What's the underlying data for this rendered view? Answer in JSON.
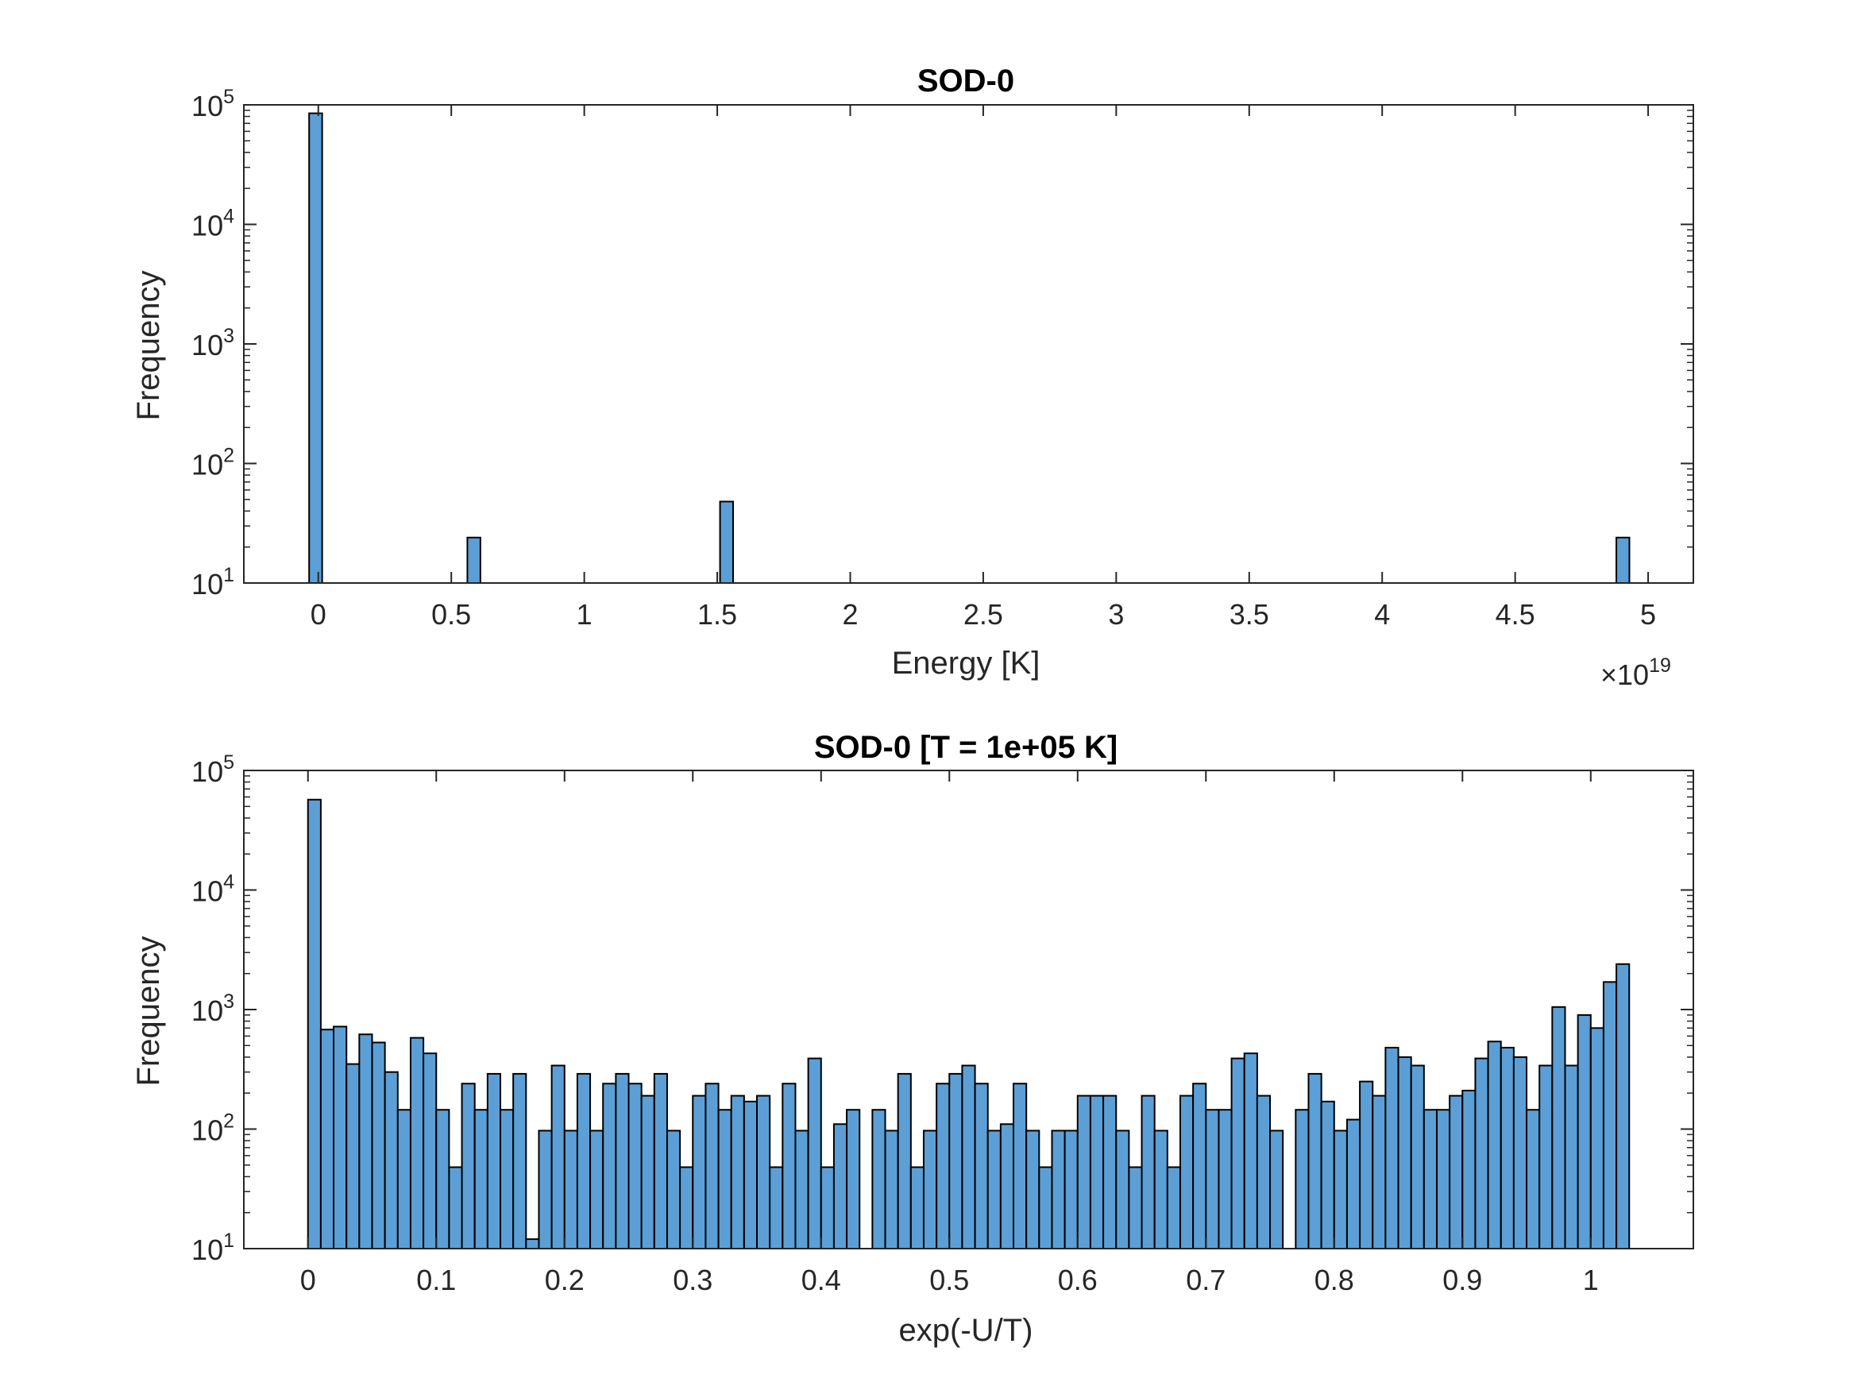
{
  "chart_data": [
    {
      "type": "bar",
      "title": "SOD-0",
      "xlabel": "Energy [K]",
      "ylabel": "Frequency",
      "x_multiplier_label": "×10",
      "x_multiplier_exponent": "19",
      "xlim": [
        -0.28,
        5.17
      ],
      "ylim": [
        10,
        100000
      ],
      "yscale": "log",
      "xticks": [
        0,
        0.5,
        1,
        1.5,
        2,
        2.5,
        3,
        3.5,
        4,
        4.5,
        5
      ],
      "xtick_labels": [
        "0",
        "0.5",
        "1",
        "1.5",
        "2",
        "2.5",
        "3",
        "3.5",
        "4",
        "4.5",
        "5"
      ],
      "yticks": [
        10,
        100,
        1000,
        10000,
        100000
      ],
      "ytick_base": "10",
      "ytick_exponents": [
        "1",
        "2",
        "3",
        "4",
        "5"
      ],
      "bar_width": 0.049,
      "bars": [
        {
          "x": -0.01,
          "value": 85000
        },
        {
          "x": 0.585,
          "value": 24
        },
        {
          "x": 1.535,
          "value": 48
        },
        {
          "x": 4.905,
          "value": 24
        }
      ],
      "bar_color": "#5c9fd6",
      "edge_color": "#000000",
      "grid": false
    },
    {
      "type": "bar",
      "title": "SOD-0 [T = 1e+05 K]",
      "xlabel": "exp(-U/T)",
      "ylabel": "Frequency",
      "xlim": [
        -0.05,
        1.08
      ],
      "ylim": [
        10,
        100000
      ],
      "yscale": "log",
      "xticks": [
        0,
        0.1,
        0.2,
        0.3,
        0.4,
        0.5,
        0.6,
        0.7,
        0.8,
        0.9,
        1
      ],
      "xtick_labels": [
        "0",
        "0.1",
        "0.2",
        "0.3",
        "0.4",
        "0.5",
        "0.6",
        "0.7",
        "0.8",
        "0.9",
        "1"
      ],
      "yticks": [
        10,
        100,
        1000,
        10000,
        100000
      ],
      "ytick_base": "10",
      "ytick_exponents": [
        "1",
        "2",
        "3",
        "4",
        "5"
      ],
      "bin_start": 0,
      "bin_width": 0.01,
      "values": [
        57000,
        680,
        720,
        350,
        620,
        530,
        300,
        145,
        580,
        430,
        145,
        48,
        240,
        145,
        290,
        145,
        290,
        12,
        97,
        340,
        97,
        290,
        97,
        240,
        290,
        240,
        190,
        290,
        97,
        48,
        190,
        240,
        145,
        190,
        170,
        190,
        48,
        240,
        97,
        390,
        48,
        110,
        145,
        0,
        145,
        97,
        290,
        48,
        97,
        240,
        290,
        340,
        240,
        97,
        110,
        240,
        97,
        48,
        97,
        97,
        190,
        190,
        190,
        97,
        48,
        190,
        97,
        48,
        190,
        240,
        145,
        145,
        390,
        430,
        190,
        97,
        0,
        145,
        290,
        170,
        97,
        120,
        250,
        190,
        480,
        400,
        340,
        145,
        145,
        190,
        210,
        390,
        540,
        480,
        400,
        145,
        340,
        1050,
        340,
        900,
        700,
        1700,
        2400
      ],
      "bar_color": "#5c9fd6",
      "edge_color": "#000000",
      "grid": false
    }
  ]
}
